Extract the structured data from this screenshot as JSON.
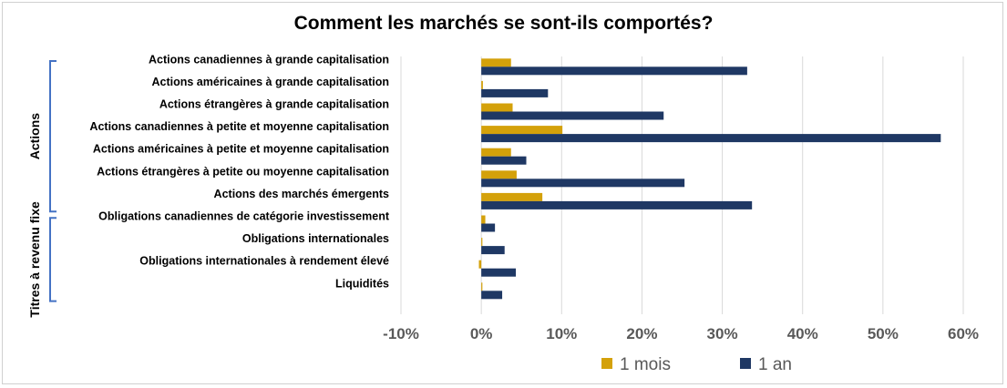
{
  "chart_data": {
    "type": "bar",
    "orientation": "horizontal",
    "title": "Comment les marchés se sont-ils comportés?",
    "categories": [
      "Actions canadiennes à grande capitalisation",
      "Actions américaines à grande capitalisation",
      "Actions étrangères à grande capitalisation",
      "Actions canadiennes à petite et moyenne capitalisation",
      "Actions américaines à petite et moyenne capitalisation",
      "Actions étrangères à petite ou moyenne capitalisation",
      "Actions des marchés émergents",
      "Obligations canadiennes de catégorie investissement",
      "Obligations internationales",
      "Obligations internationales à rendement élevé",
      "Liquidités"
    ],
    "groups": [
      {
        "label": "Actions",
        "count": 7
      },
      {
        "label": "Titres à revenu fixe",
        "count": 4
      }
    ],
    "series": [
      {
        "name": "1 mois",
        "color": "#D4A10A",
        "values": [
          3.7,
          0.2,
          3.9,
          10.1,
          3.7,
          4.4,
          7.6,
          0.5,
          0.0,
          -0.3,
          0.1
        ]
      },
      {
        "name": "1 an",
        "color": "#1F3864",
        "values": [
          33.1,
          8.3,
          22.7,
          57.2,
          5.6,
          25.3,
          33.7,
          1.7,
          2.9,
          4.3,
          2.6
        ]
      }
    ],
    "xlim": [
      -10,
      60
    ],
    "ticks": [
      "-10%",
      "0%",
      "10%",
      "20%",
      "30%",
      "40%",
      "50%",
      "60%"
    ],
    "grid": true,
    "legend": "bottom"
  }
}
